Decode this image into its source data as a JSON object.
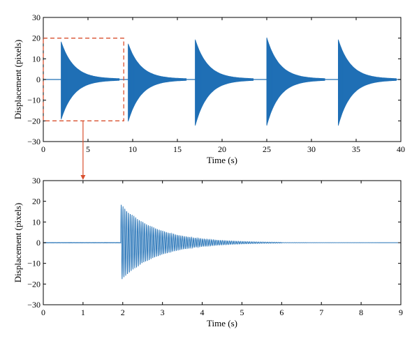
{
  "colors": {
    "signal": "#1f6fb5",
    "highlight": "#d9502f",
    "axis": "#000000"
  },
  "chart_data": [
    {
      "type": "line",
      "title": "",
      "xlabel": "Time (s)",
      "ylabel": "Displacement (pixels)",
      "xlim": [
        0,
        40
      ],
      "ylim": [
        -30,
        30
      ],
      "xticks": [
        "0",
        "5",
        "10",
        "15",
        "20",
        "25",
        "30",
        "35",
        "40"
      ],
      "yticks": [
        "30",
        "20",
        "10",
        "0",
        "−10",
        "−20",
        "−30"
      ],
      "grid": false,
      "series": [
        {
          "description_of_bursts": "five decaying free-vibration bursts",
          "burst_onsets_s": [
            2,
            9.5,
            17,
            25,
            33
          ],
          "burst_peak_positive": [
            18,
            17,
            19,
            20,
            19
          ],
          "burst_peak_negative": [
            -19,
            -20,
            -22,
            -22,
            -22
          ],
          "baseline": 0
        }
      ],
      "annotations": [
        {
          "type": "dashed-box",
          "x_range": [
            0,
            9
          ],
          "y_range": [
            -20,
            20
          ],
          "links_to": "zoom-panel"
        }
      ]
    },
    {
      "type": "line",
      "title": "",
      "xlabel": "Time (s)",
      "ylabel": "Displacement (pixels)",
      "xlim": [
        0,
        9
      ],
      "ylim": [
        -30,
        30
      ],
      "xticks": [
        "0",
        "1",
        "2",
        "3",
        "4",
        "5",
        "6",
        "7",
        "8",
        "9"
      ],
      "yticks": [
        "30",
        "20",
        "10",
        "0",
        "−10",
        "−20",
        "−30"
      ],
      "grid": false,
      "series": [
        {
          "burst_onset_s": 1.95,
          "peak_positive": 18,
          "peak_negative": -19,
          "decay_end_s": 6,
          "baseline": 0
        }
      ]
    }
  ]
}
